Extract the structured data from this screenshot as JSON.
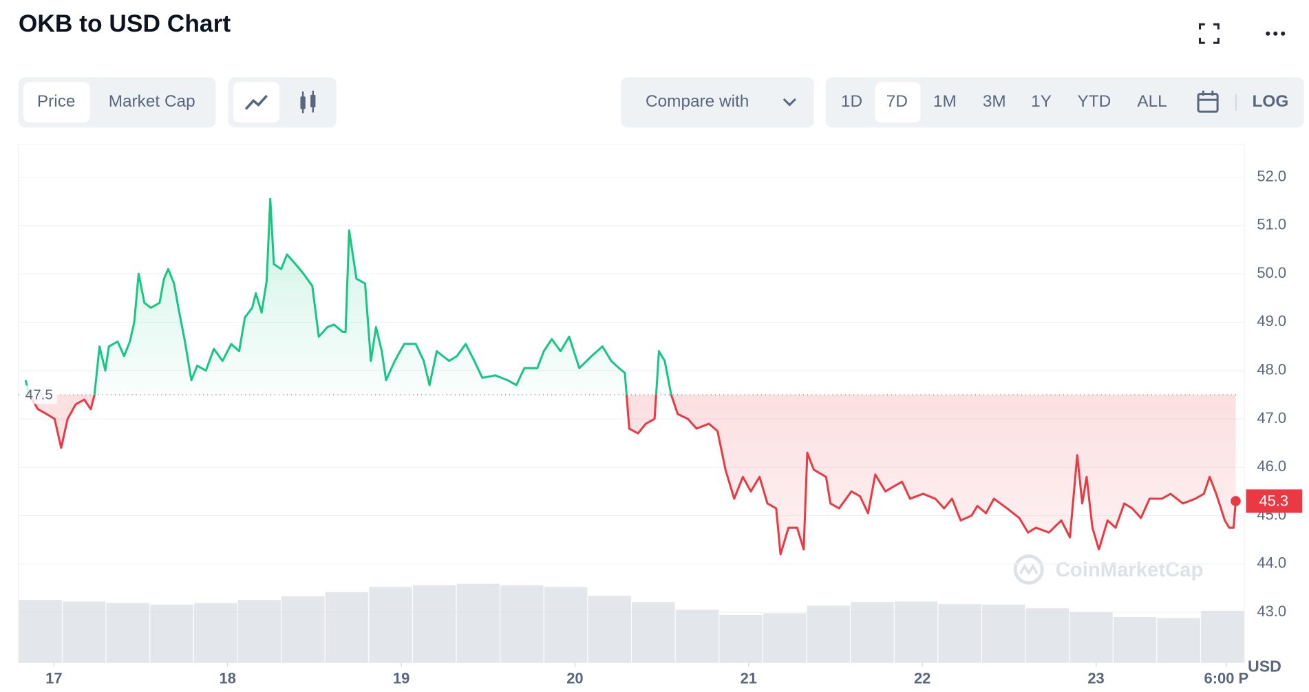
{
  "chart_data": {
    "type": "line",
    "title": "OKB to USD Chart",
    "toolbar": {
      "tabs": [
        "Price",
        "Market Cap"
      ],
      "compare": "Compare with",
      "ranges": [
        "1D",
        "7D",
        "1M",
        "3M",
        "1Y",
        "YTD",
        "ALL"
      ],
      "log": "LOG"
    },
    "currency": "USD",
    "watermark": "CoinMarketCap",
    "up_color": "#16c784",
    "down_color": "#ea3943",
    "reference_value": 47.5,
    "last_price": 45.3,
    "xlim": [
      -4.9,
      164.5
    ],
    "xticks": [
      {
        "value": 0,
        "label": "17"
      },
      {
        "value": 24,
        "label": "18"
      },
      {
        "value": 48,
        "label": "19"
      },
      {
        "value": 72,
        "label": "20"
      },
      {
        "value": 96,
        "label": "21"
      },
      {
        "value": 120,
        "label": "22"
      },
      {
        "value": 144,
        "label": "23"
      },
      {
        "value": 162,
        "label": "6:00 P"
      }
    ],
    "ylim": [
      41.96,
      52.68
    ],
    "yticks": [
      {
        "value": 43,
        "label": "43.0"
      },
      {
        "value": 44,
        "label": "44.0"
      },
      {
        "value": 45,
        "label": "45.0"
      },
      {
        "value": 46,
        "label": "46.0"
      },
      {
        "value": 47,
        "label": "47.0"
      },
      {
        "value": 48,
        "label": "48.0"
      },
      {
        "value": 49,
        "label": "49.0"
      },
      {
        "value": 50,
        "label": "50.0"
      },
      {
        "value": 51,
        "label": "51.0"
      },
      {
        "value": 52,
        "label": "52.0"
      }
    ],
    "grid": true,
    "series": [
      {
        "x": [
          -3.9,
          -3.4,
          -2.2,
          -1.0,
          0.1,
          1.0,
          1.9,
          3.0,
          4.2,
          5.1,
          5.6,
          6.3,
          7.1,
          7.6,
          8.8,
          9.7,
          10.5,
          11.1,
          11.7,
          12.5,
          13.4,
          14.6,
          15.2,
          15.8,
          16.6,
          17.2,
          18.1,
          19.0,
          19.8,
          21.0,
          22.1,
          23.3,
          24.5,
          25.6,
          26.4,
          27.4,
          27.9,
          28.7,
          29.4,
          29.9,
          30.4,
          31.4,
          32.2,
          33.4,
          34.5,
          35.7,
          36.6,
          37.8,
          38.7,
          39.9,
          40.3,
          40.8,
          41.8,
          43.0,
          43.8,
          44.5,
          45.3,
          45.9,
          47.1,
          48.4,
          50.0,
          51.1,
          51.9,
          52.9,
          54.6,
          55.7,
          56.9,
          58.1,
          59.2,
          61.0,
          62.7,
          63.9,
          65.0,
          66.8,
          67.7,
          68.8,
          70.0,
          71.2,
          72.6,
          74.3,
          75.8,
          77.0,
          78.1,
          78.9,
          79.5,
          80.7,
          81.8,
          83.0,
          83.6,
          84.4,
          85.3,
          86.2,
          87.6,
          88.8,
          90.5,
          91.7,
          92.8,
          94.0,
          95.2,
          96.3,
          97.5,
          98.6,
          99.8,
          100.4,
          101.5,
          102.7,
          103.6,
          104.1,
          105.0,
          106.7,
          107.3,
          108.5,
          110.2,
          111.4,
          112.5,
          113.5,
          114.9,
          116.0,
          117.2,
          118.3,
          120.1,
          121.8,
          123.0,
          124.1,
          125.3,
          126.8,
          127.6,
          128.8,
          129.9,
          131.7,
          133.4,
          134.6,
          135.7,
          137.5,
          139.2,
          140.4,
          141.4,
          142.1,
          142.7,
          143.5,
          144.4,
          145.6,
          146.7,
          147.9,
          149.0,
          150.2,
          151.4,
          153.1,
          154.3,
          156.0,
          157.7,
          158.9,
          159.7,
          160.6,
          161.8,
          162.4,
          163.0,
          163.3
        ],
        "values": [
          47.8,
          47.5,
          47.2,
          47.1,
          47.0,
          46.4,
          47.0,
          47.3,
          47.4,
          47.2,
          47.5,
          48.5,
          48.0,
          48.5,
          48.6,
          48.3,
          48.6,
          49.0,
          50.0,
          49.4,
          49.3,
          49.4,
          49.9,
          50.1,
          49.8,
          49.3,
          48.6,
          47.8,
          48.1,
          48.0,
          48.45,
          48.2,
          48.55,
          48.4,
          49.1,
          49.3,
          49.6,
          49.2,
          49.85,
          51.55,
          50.2,
          50.1,
          50.4,
          50.2,
          50.0,
          49.75,
          48.7,
          48.9,
          48.95,
          48.8,
          48.8,
          50.9,
          49.9,
          49.8,
          48.2,
          48.9,
          48.4,
          47.8,
          48.2,
          48.55,
          48.55,
          48.2,
          47.7,
          48.4,
          48.2,
          48.3,
          48.55,
          48.2,
          47.85,
          47.9,
          47.8,
          47.7,
          48.05,
          48.05,
          48.4,
          48.65,
          48.4,
          48.7,
          48.05,
          48.3,
          48.5,
          48.2,
          48.05,
          47.95,
          46.8,
          46.7,
          46.9,
          47.0,
          48.4,
          48.2,
          47.5,
          47.1,
          47.0,
          46.8,
          46.9,
          46.75,
          45.95,
          45.35,
          45.8,
          45.5,
          45.8,
          45.25,
          45.15,
          44.2,
          44.75,
          44.75,
          44.3,
          46.3,
          45.95,
          45.8,
          45.25,
          45.15,
          45.5,
          45.4,
          45.05,
          45.85,
          45.5,
          45.6,
          45.7,
          45.35,
          45.45,
          45.35,
          45.15,
          45.35,
          44.9,
          45.0,
          45.2,
          45.05,
          45.35,
          45.15,
          44.95,
          44.65,
          44.75,
          44.65,
          44.9,
          44.55,
          46.25,
          45.25,
          45.8,
          44.75,
          44.3,
          44.9,
          44.75,
          45.25,
          45.15,
          44.95,
          45.35,
          45.35,
          45.45,
          45.25,
          45.35,
          45.45,
          45.8,
          45.45,
          44.9,
          44.75,
          44.75,
          45.3
        ]
      }
    ],
    "volume": {
      "color": "#d7dbe2",
      "ylim": [
        0,
        100
      ],
      "values": [
        12.1,
        11.8,
        11.5,
        11.2,
        11.5,
        12.1,
        12.8,
        13.6,
        14.6,
        14.9,
        15.2,
        14.9,
        14.6,
        12.9,
        11.7,
        10.2,
        9.2,
        9.5,
        11.0,
        11.7,
        11.8,
        11.3,
        11.2,
        10.5,
        9.7,
        8.8,
        8.6,
        10.0
      ]
    }
  }
}
